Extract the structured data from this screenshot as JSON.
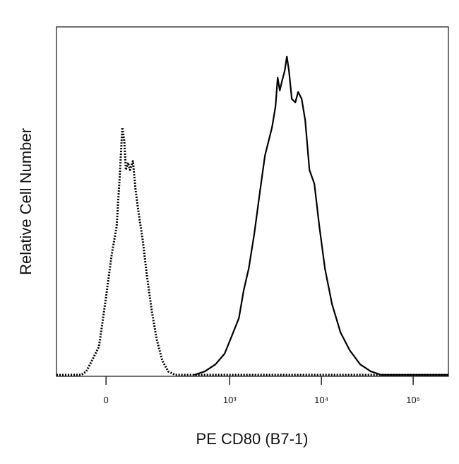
{
  "chart_data": {
    "type": "line",
    "xlabel": "PE CD80 (B7-1)",
    "ylabel": "Relative Cell Number",
    "xscale": "biexponential",
    "xlim": [
      -143,
      242000
    ],
    "ylim": [
      0,
      100
    ],
    "xticks": [
      0,
      {
        "value": 1000,
        "label": "10³"
      },
      {
        "value": 10000,
        "label": "10⁴"
      },
      {
        "value": 100000,
        "label": "10⁵"
      }
    ],
    "series": [
      {
        "color": "#000000",
        "linestyle": "dotted",
        "x": [
          -143,
          -59.5,
          -46.5,
          -32.5,
          -16,
          0,
          12.8,
          24.2,
          32.5,
          37.7,
          42.9,
          46.5,
          52,
          57.5,
          65.3,
          73.4,
          81.8,
          95.2,
          109.6,
          127.8,
          147.9,
          173.5,
          205,
          247.5,
          242000
        ],
        "values": [
          0,
          0,
          1.0,
          4.1,
          8.1,
          22.4,
          34.6,
          42.7,
          58.9,
          71.1,
          67.1,
          58.9,
          61.0,
          58.9,
          61.4,
          52.8,
          46.7,
          38.6,
          28.5,
          18.3,
          10.2,
          4.1,
          1.0,
          0,
          0
        ]
      },
      {
        "color": "#000000",
        "linestyle": "solid",
        "x": [
          407,
          533,
          698,
          880,
          1055,
          1259,
          1425,
          1613,
          1859,
          2142,
          2425,
          2894,
          3162,
          3336,
          3517,
          3709,
          3981,
          4199,
          4429,
          4753,
          5193,
          5575,
          6091,
          6655,
          7401,
          8380,
          9483,
          10925,
          13045,
          16137,
          20315,
          26489,
          34551,
          45071,
          242000
        ],
        "values": [
          0,
          1.0,
          3.0,
          6.1,
          11.2,
          16.3,
          24.4,
          30.5,
          40.7,
          52.8,
          63.0,
          71.1,
          77.2,
          85.4,
          81.7,
          84.3,
          87.4,
          91.5,
          87.4,
          79.3,
          78.3,
          81.3,
          79.3,
          73.2,
          58.9,
          54.9,
          42.7,
          30.5,
          20.3,
          12.2,
          7.1,
          3.0,
          1.0,
          0,
          0
        ]
      }
    ]
  }
}
